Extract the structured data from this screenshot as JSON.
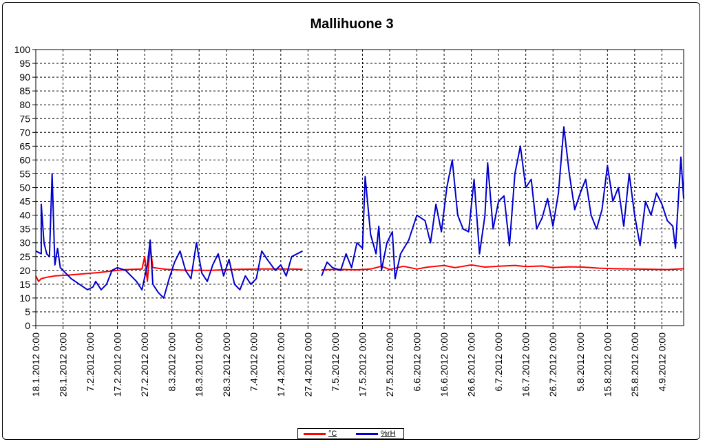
{
  "chart_data": {
    "type": "line",
    "title": "Mallihuone 3",
    "ylim": [
      0,
      100
    ],
    "yticks": [
      0,
      5,
      10,
      15,
      20,
      25,
      30,
      35,
      40,
      45,
      50,
      55,
      60,
      65,
      70,
      75,
      80,
      85,
      90,
      95,
      100
    ],
    "xrange": [
      "2012-01-18",
      "2012-09-12"
    ],
    "xticks": [
      "18.1.2012 0:00",
      "28.1.2012 0:00",
      "7.2.2012 0:00",
      "17.2.2012 0:00",
      "27.2.2012 0:00",
      "8.3.2012 0:00",
      "18.3.2012 0:00",
      "28.3.2012 0:00",
      "7.4.2012 0:00",
      "17.4.2012 0:00",
      "27.4.2012 0:00",
      "7.5.2012 0:00",
      "17.5.2012 0:00",
      "27.5.2012 0:00",
      "6.6.2012 0:00",
      "16.6.2012 0:00",
      "26.6.2012 0:00",
      "6.7.2012 0:00",
      "16.7.2012 0:00",
      "26.7.2012 0:00",
      "5.8.2012 0:00",
      "15.8.2012 0:00",
      "25.8.2012 0:00",
      "4.9.2012 0:00"
    ],
    "grid": true,
    "legend_position": "bottom",
    "series": [
      {
        "name": "°C",
        "color": "#ff0000",
        "segments": [
          [
            [
              "2012-01-18",
              18
            ],
            [
              "2012-01-19",
              16
            ],
            [
              "2012-01-20",
              17
            ],
            [
              "2012-01-22",
              17.5
            ],
            [
              "2012-01-25",
              18
            ],
            [
              "2012-01-30",
              18.3
            ],
            [
              "2012-02-05",
              18.8
            ],
            [
              "2012-02-10",
              19.2
            ],
            [
              "2012-02-15",
              19.8
            ],
            [
              "2012-02-20",
              20.3
            ],
            [
              "2012-02-26",
              20.5
            ],
            [
              "2012-02-27",
              25
            ],
            [
              "2012-02-28",
              16
            ],
            [
              "2012-02-29",
              29
            ],
            [
              "2012-03-01",
              21
            ],
            [
              "2012-03-06",
              20.4
            ],
            [
              "2012-03-14",
              20
            ],
            [
              "2012-03-22",
              20
            ],
            [
              "2012-04-01",
              20.4
            ],
            [
              "2012-04-10",
              20.5
            ],
            [
              "2012-04-20",
              20.5
            ],
            [
              "2012-04-25",
              20.4
            ]
          ],
          [
            [
              "2012-05-02",
              20.2
            ],
            [
              "2012-05-08",
              20.4
            ],
            [
              "2012-05-15",
              20.2
            ],
            [
              "2012-05-20",
              20.5
            ],
            [
              "2012-05-24",
              21.5
            ],
            [
              "2012-05-27",
              20.3
            ],
            [
              "2012-06-01",
              21.5
            ],
            [
              "2012-06-06",
              20.5
            ],
            [
              "2012-06-10",
              21.2
            ],
            [
              "2012-06-16",
              21.8
            ],
            [
              "2012-06-20",
              21
            ],
            [
              "2012-06-26",
              22
            ],
            [
              "2012-07-01",
              21.2
            ],
            [
              "2012-07-06",
              21.5
            ],
            [
              "2012-07-12",
              21.8
            ],
            [
              "2012-07-16",
              21.4
            ],
            [
              "2012-07-22",
              21.6
            ],
            [
              "2012-07-26",
              21
            ],
            [
              "2012-08-01",
              21.3
            ],
            [
              "2012-08-06",
              21.2
            ],
            [
              "2012-08-12",
              20.8
            ],
            [
              "2012-08-18",
              20.6
            ],
            [
              "2012-08-25",
              20.5
            ],
            [
              "2012-09-01",
              20.4
            ],
            [
              "2012-09-06",
              20.3
            ],
            [
              "2012-09-12",
              20.6
            ]
          ]
        ]
      },
      {
        "name": "%rH",
        "color": "#0000cc",
        "segments": [
          [
            [
              "2012-01-18",
              27
            ],
            [
              "2012-01-20",
              26
            ],
            [
              "2012-01-20",
              44
            ],
            [
              "2012-01-21",
              30
            ],
            [
              "2012-01-22",
              26
            ],
            [
              "2012-01-23",
              25
            ],
            [
              "2012-01-24",
              55
            ],
            [
              "2012-01-25",
              22
            ],
            [
              "2012-01-26",
              28
            ],
            [
              "2012-01-27",
              21
            ],
            [
              "2012-01-29",
              19
            ],
            [
              "2012-01-31",
              17
            ],
            [
              "2012-02-03",
              15
            ],
            [
              "2012-02-06",
              13
            ],
            [
              "2012-02-08",
              14
            ],
            [
              "2012-02-09",
              16
            ],
            [
              "2012-02-11",
              13
            ],
            [
              "2012-02-13",
              15
            ],
            [
              "2012-02-15",
              20
            ],
            [
              "2012-02-17",
              21
            ],
            [
              "2012-02-20",
              20
            ],
            [
              "2012-02-22",
              18
            ],
            [
              "2012-02-24",
              16
            ],
            [
              "2012-02-26",
              13
            ],
            [
              "2012-02-28",
              22
            ],
            [
              "2012-02-29",
              31
            ],
            [
              "2012-03-01",
              15
            ],
            [
              "2012-03-03",
              12
            ],
            [
              "2012-03-05",
              10
            ],
            [
              "2012-03-07",
              17
            ],
            [
              "2012-03-09",
              23
            ],
            [
              "2012-03-11",
              27
            ],
            [
              "2012-03-13",
              20
            ],
            [
              "2012-03-15",
              17
            ],
            [
              "2012-03-17",
              30
            ],
            [
              "2012-03-19",
              19
            ],
            [
              "2012-03-21",
              16
            ],
            [
              "2012-03-23",
              22
            ],
            [
              "2012-03-25",
              26
            ],
            [
              "2012-03-27",
              18
            ],
            [
              "2012-03-29",
              24
            ],
            [
              "2012-03-31",
              15
            ],
            [
              "2012-04-02",
              13
            ],
            [
              "2012-04-04",
              18
            ],
            [
              "2012-04-06",
              15
            ],
            [
              "2012-04-08",
              17
            ],
            [
              "2012-04-10",
              27
            ],
            [
              "2012-04-12",
              24
            ],
            [
              "2012-04-15",
              20
            ],
            [
              "2012-04-17",
              22
            ],
            [
              "2012-04-19",
              18
            ],
            [
              "2012-04-21",
              25
            ],
            [
              "2012-04-25",
              27
            ]
          ],
          [
            [
              "2012-05-02",
              18
            ],
            [
              "2012-05-04",
              23
            ],
            [
              "2012-05-06",
              21
            ],
            [
              "2012-05-09",
              20
            ],
            [
              "2012-05-11",
              26
            ],
            [
              "2012-05-13",
              21
            ],
            [
              "2012-05-15",
              30
            ],
            [
              "2012-05-17",
              28
            ],
            [
              "2012-05-18",
              54
            ],
            [
              "2012-05-20",
              33
            ],
            [
              "2012-05-22",
              26
            ],
            [
              "2012-05-23",
              36
            ],
            [
              "2012-05-24",
              20
            ],
            [
              "2012-05-26",
              30
            ],
            [
              "2012-05-28",
              34
            ],
            [
              "2012-05-29",
              17
            ],
            [
              "2012-05-31",
              26
            ],
            [
              "2012-06-03",
              31
            ],
            [
              "2012-06-06",
              40
            ],
            [
              "2012-06-09",
              38
            ],
            [
              "2012-06-11",
              30
            ],
            [
              "2012-06-13",
              44
            ],
            [
              "2012-06-15",
              34
            ],
            [
              "2012-06-17",
              50
            ],
            [
              "2012-06-19",
              60
            ],
            [
              "2012-06-21",
              40
            ],
            [
              "2012-06-23",
              35
            ],
            [
              "2012-06-25",
              34
            ],
            [
              "2012-06-27",
              53
            ],
            [
              "2012-06-29",
              26
            ],
            [
              "2012-07-01",
              40
            ],
            [
              "2012-07-02",
              59
            ],
            [
              "2012-07-04",
              35
            ],
            [
              "2012-07-06",
              45
            ],
            [
              "2012-07-08",
              47
            ],
            [
              "2012-07-10",
              29
            ],
            [
              "2012-07-12",
              55
            ],
            [
              "2012-07-14",
              65
            ],
            [
              "2012-07-16",
              50
            ],
            [
              "2012-07-18",
              53
            ],
            [
              "2012-07-20",
              35
            ],
            [
              "2012-07-22",
              39
            ],
            [
              "2012-07-24",
              46
            ],
            [
              "2012-07-26",
              36
            ],
            [
              "2012-07-28",
              48
            ],
            [
              "2012-07-30",
              72
            ],
            [
              "2012-08-01",
              55
            ],
            [
              "2012-08-03",
              42
            ],
            [
              "2012-08-05",
              48
            ],
            [
              "2012-08-07",
              53
            ],
            [
              "2012-08-09",
              40
            ],
            [
              "2012-08-11",
              35
            ],
            [
              "2012-08-13",
              42
            ],
            [
              "2012-08-15",
              58
            ],
            [
              "2012-08-17",
              45
            ],
            [
              "2012-08-19",
              50
            ],
            [
              "2012-08-21",
              36
            ],
            [
              "2012-08-23",
              55
            ],
            [
              "2012-08-25",
              40
            ],
            [
              "2012-08-27",
              29
            ],
            [
              "2012-08-29",
              45
            ],
            [
              "2012-08-31",
              40
            ],
            [
              "2012-09-02",
              48
            ],
            [
              "2012-09-04",
              44
            ],
            [
              "2012-09-06",
              38
            ],
            [
              "2012-09-08",
              36
            ],
            [
              "2012-09-09",
              28
            ],
            [
              "2012-09-11",
              61
            ],
            [
              "2012-09-12",
              46
            ]
          ]
        ]
      }
    ]
  }
}
